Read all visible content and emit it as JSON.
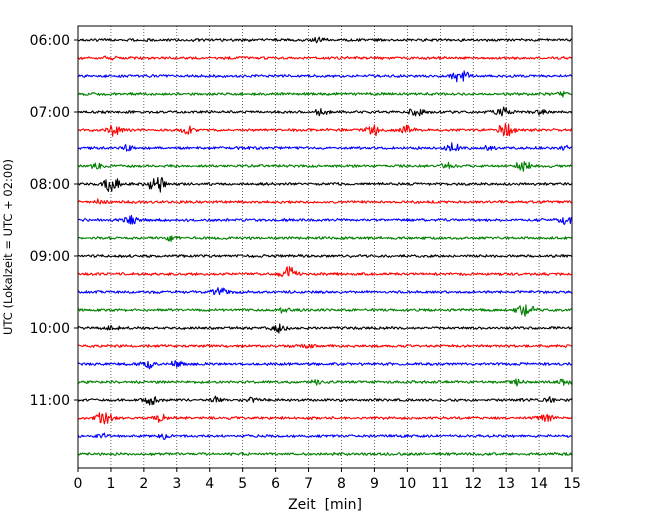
{
  "chart_data": {
    "type": "line",
    "title": "",
    "xlabel": "Zeit  [min]",
    "ylabel": "UTC (Lokalzeit = UTC + 02:00)",
    "xlim": [
      0,
      15
    ],
    "xticks": [
      0,
      1,
      2,
      3,
      4,
      5,
      6,
      7,
      8,
      9,
      10,
      11,
      12,
      13,
      14,
      15
    ],
    "xtick_labels": [
      "0",
      "1",
      "2",
      "3",
      "4",
      "5",
      "6",
      "7",
      "8",
      "9",
      "10",
      "11",
      "12",
      "13",
      "14",
      "15"
    ],
    "yticks": [
      "06:00",
      "07:00",
      "08:00",
      "09:00",
      "10:00",
      "11:00"
    ],
    "grid": "vertical dotted at each minute",
    "trace_colors": [
      "#000000",
      "#ff0000",
      "#0000ff",
      "#008000"
    ],
    "series": [
      {
        "start": "06:00",
        "color": "#000000",
        "bursts": [
          [
            7.3,
            0.6
          ]
        ]
      },
      {
        "start": "06:15",
        "color": "#ff0000",
        "bursts": [
          [
            1.0,
            0.5
          ]
        ]
      },
      {
        "start": "06:30",
        "color": "#0000ff",
        "bursts": [
          [
            11.6,
            1.4
          ]
        ]
      },
      {
        "start": "06:45",
        "color": "#008000",
        "bursts": [
          [
            14.7,
            0.6
          ]
        ]
      },
      {
        "start": "07:00",
        "color": "#000000",
        "bursts": [
          [
            7.4,
            0.7
          ],
          [
            10.3,
            1.1
          ],
          [
            12.9,
            1.0
          ],
          [
            14.1,
            0.6
          ]
        ]
      },
      {
        "start": "07:15",
        "color": "#ff0000",
        "bursts": [
          [
            1.1,
            1.1
          ],
          [
            3.3,
            0.8
          ],
          [
            9.0,
            1.2
          ],
          [
            10.0,
            1.0
          ],
          [
            13.0,
            1.4
          ]
        ]
      },
      {
        "start": "07:30",
        "color": "#0000ff",
        "bursts": [
          [
            1.5,
            0.5
          ],
          [
            11.4,
            1.0
          ],
          [
            12.5,
            0.6
          ],
          [
            14.8,
            0.5
          ]
        ]
      },
      {
        "start": "07:45",
        "color": "#008000",
        "bursts": [
          [
            0.6,
            0.6
          ],
          [
            11.2,
            0.5
          ],
          [
            13.5,
            1.2
          ]
        ]
      },
      {
        "start": "08:00",
        "color": "#000000",
        "bursts": [
          [
            1.0,
            1.6
          ],
          [
            2.4,
            1.8
          ]
        ]
      },
      {
        "start": "08:15",
        "color": "#ff0000",
        "bursts": [
          [
            0.7,
            0.5
          ]
        ]
      },
      {
        "start": "08:30",
        "color": "#0000ff",
        "bursts": [
          [
            1.6,
            1.0
          ],
          [
            14.8,
            0.9
          ]
        ]
      },
      {
        "start": "08:45",
        "color": "#008000",
        "bursts": [
          [
            2.8,
            0.5
          ]
        ]
      },
      {
        "start": "09:00",
        "color": "#000000",
        "bursts": []
      },
      {
        "start": "09:15",
        "color": "#ff0000",
        "bursts": [
          [
            6.4,
            1.3
          ]
        ]
      },
      {
        "start": "09:30",
        "color": "#0000ff",
        "bursts": [
          [
            4.3,
            1.1
          ]
        ]
      },
      {
        "start": "09:45",
        "color": "#008000",
        "bursts": [
          [
            13.6,
            1.5
          ],
          [
            6.2,
            0.5
          ]
        ]
      },
      {
        "start": "10:00",
        "color": "#000000",
        "bursts": [
          [
            1.0,
            0.7
          ],
          [
            6.1,
            0.9
          ]
        ]
      },
      {
        "start": "10:15",
        "color": "#ff0000",
        "bursts": [
          [
            7.0,
            0.5
          ]
        ]
      },
      {
        "start": "10:30",
        "color": "#0000ff",
        "bursts": [
          [
            2.1,
            1.0
          ],
          [
            3.0,
            0.6
          ]
        ]
      },
      {
        "start": "10:45",
        "color": "#008000",
        "bursts": [
          [
            7.2,
            0.6
          ],
          [
            13.3,
            0.7
          ],
          [
            14.8,
            0.6
          ]
        ]
      },
      {
        "start": "11:00",
        "color": "#000000",
        "bursts": [
          [
            2.2,
            0.9
          ],
          [
            4.2,
            0.6
          ],
          [
            5.3,
            0.5
          ],
          [
            14.3,
            0.5
          ]
        ]
      },
      {
        "start": "11:15",
        "color": "#ff0000",
        "bursts": [
          [
            0.8,
            1.3
          ],
          [
            2.5,
            0.7
          ],
          [
            14.2,
            0.9
          ]
        ]
      },
      {
        "start": "11:30",
        "color": "#0000ff",
        "bursts": [
          [
            0.7,
            0.5
          ],
          [
            2.6,
            0.5
          ]
        ]
      },
      {
        "start": "11:45",
        "color": "#008000",
        "bursts": []
      }
    ]
  }
}
